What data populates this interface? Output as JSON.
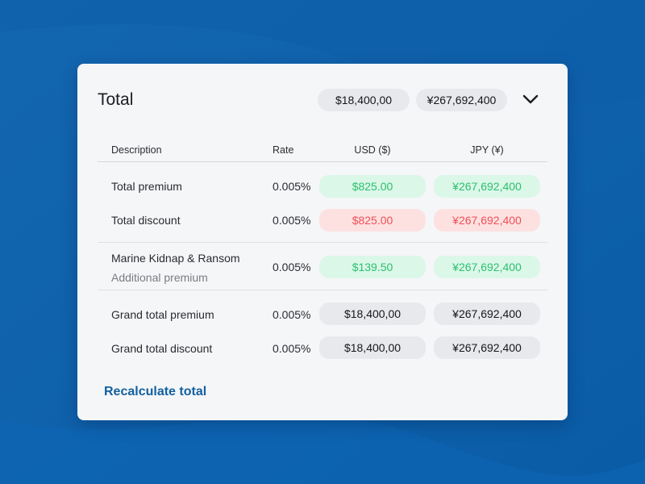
{
  "colors": {
    "background": "#0d62ad",
    "card": "#f5f6f8",
    "positive_bg": "#dbf7e8",
    "positive_text": "#2cc06f",
    "negative_bg": "#fde1e1",
    "negative_text": "#ef4f56",
    "neutral_bg": "#e8e9ec",
    "link": "#13619f"
  },
  "header": {
    "title": "Total",
    "usd_total": "$18,400,00",
    "jpy_total": "¥267,692,400",
    "toggle_icon": "chevron-down-icon"
  },
  "table": {
    "columns": {
      "description": "Description",
      "rate": "Rate",
      "usd": "USD ($)",
      "jpy": "JPY (¥)"
    },
    "rows": [
      {
        "label": "Total premium",
        "rate": "0.005%",
        "usd": "$825.00",
        "jpy": "¥267,692,400",
        "status": "positive"
      },
      {
        "label": "Total discount",
        "rate": "0.005%",
        "usd": "$825.00",
        "jpy": "¥267,692,400",
        "status": "negative"
      },
      {
        "label": "Marine Kidnap & Ransom",
        "sublabel": "Additional premium",
        "rate": "0.005%",
        "usd": "$139.50",
        "jpy": "¥267,692,400",
        "status": "positive"
      },
      {
        "label": "Grand total premium",
        "rate": "0.005%",
        "usd": "$18,400,00",
        "jpy": "¥267,692,400",
        "status": "neutral"
      },
      {
        "label": "Grand total discount",
        "rate": "0.005%",
        "usd": "$18,400,00",
        "jpy": "¥267,692,400",
        "status": "neutral"
      }
    ]
  },
  "actions": {
    "recalculate_label": "Recalculate total"
  }
}
